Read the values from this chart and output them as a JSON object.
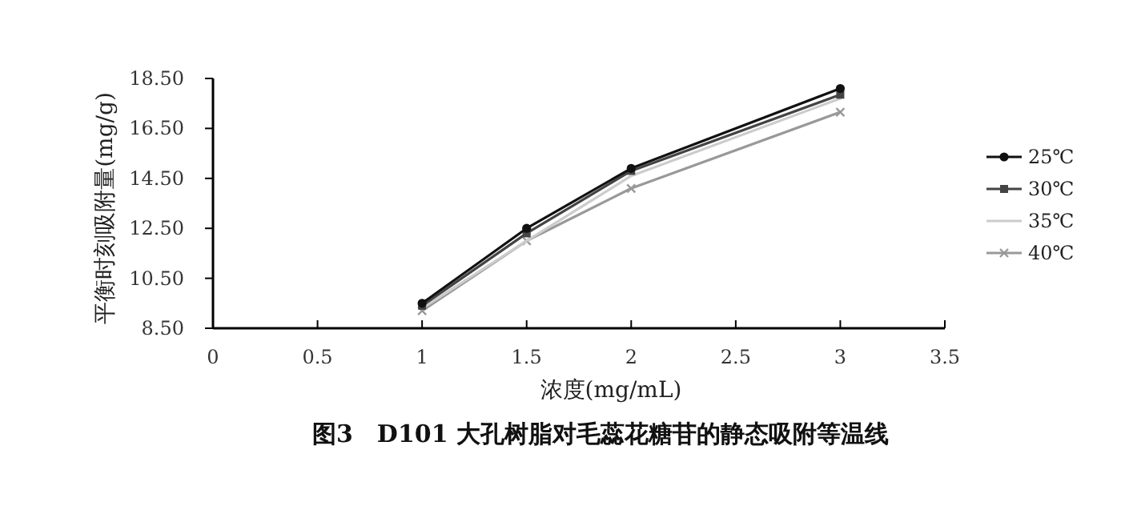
{
  "chart_data": {
    "type": "line",
    "title": "图3　D101 大孔树脂对毛蕊花糖苷的静态吸附等温线",
    "xlabel": "浓度(mg/mL)",
    "ylabel": "平衡时刻吸附量(mg/g)",
    "x": [
      1,
      1.5,
      2,
      3
    ],
    "series": [
      {
        "name": "25℃",
        "color": "#111111",
        "marker": "circle",
        "values": [
          9.5,
          12.5,
          14.9,
          18.1
        ]
      },
      {
        "name": "30℃",
        "color": "#444444",
        "marker": "square",
        "values": [
          9.4,
          12.3,
          14.8,
          17.85
        ]
      },
      {
        "name": "35℃",
        "color": "#cccccc",
        "marker": "none",
        "values": [
          9.3,
          12.0,
          14.6,
          17.7
        ]
      },
      {
        "name": "40℃",
        "color": "#999999",
        "marker": "cross",
        "values": [
          9.2,
          12.0,
          14.1,
          17.15
        ]
      }
    ],
    "xlim": [
      0,
      3.5
    ],
    "xticks": [
      0,
      0.5,
      1,
      1.5,
      2,
      2.5,
      3,
      3.5
    ],
    "ylim": [
      8.5,
      18.5
    ],
    "yticks": [
      {
        "value": 8.5,
        "label": "8.50"
      },
      {
        "value": 10.5,
        "label": "10.50"
      },
      {
        "value": 12.5,
        "label": "12.50"
      },
      {
        "value": 14.5,
        "label": "14.50"
      },
      {
        "value": 16.5,
        "label": "16.50"
      },
      {
        "value": 18.5,
        "label": "18.50"
      }
    ],
    "grid": false,
    "legend": "right"
  }
}
